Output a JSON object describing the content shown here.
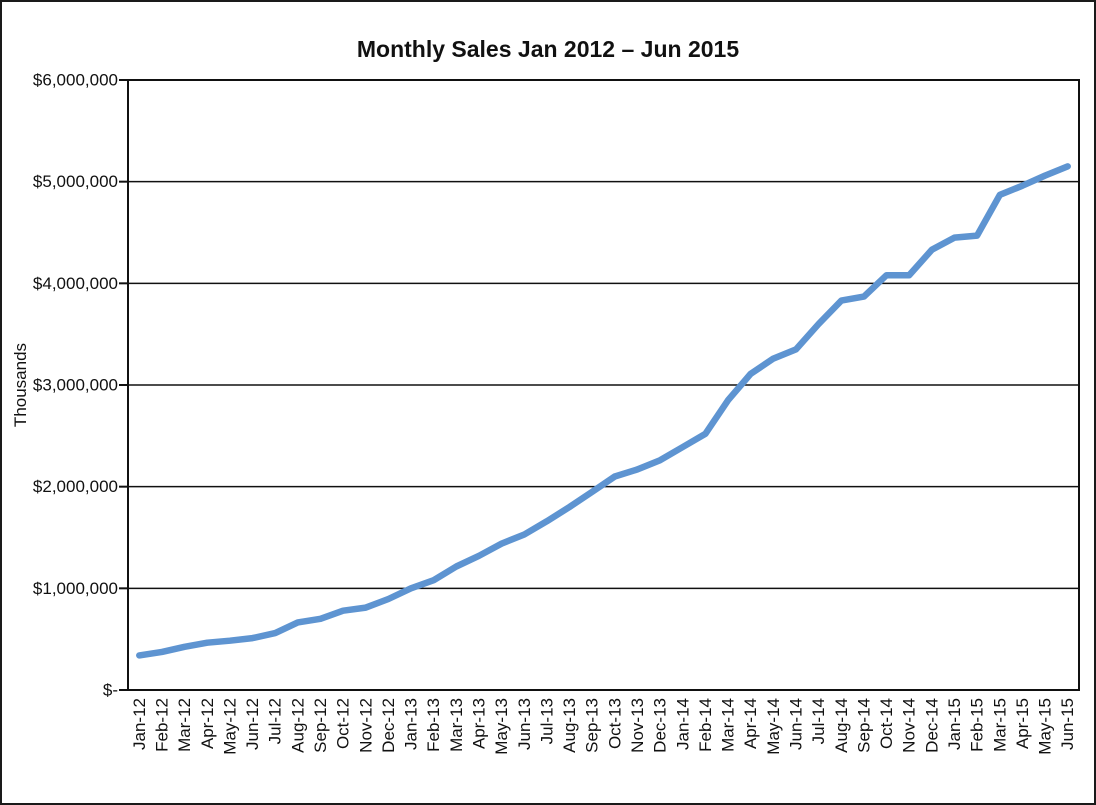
{
  "chart_data": {
    "type": "line",
    "title": "Monthly Sales Jan 2012 – Jun 2015",
    "xlabel": "",
    "ylabel": "Thousands",
    "categories": [
      "Jan-12",
      "Feb-12",
      "Mar-12",
      "Apr-12",
      "May-12",
      "Jun-12",
      "Jul-12",
      "Aug-12",
      "Sep-12",
      "Oct-12",
      "Nov-12",
      "Dec-12",
      "Jan-13",
      "Feb-13",
      "Mar-13",
      "Apr-13",
      "May-13",
      "Jun-13",
      "Jul-13",
      "Aug-13",
      "Sep-13",
      "Oct-13",
      "Nov-13",
      "Dec-13",
      "Jan-14",
      "Feb-14",
      "Mar-14",
      "Apr-14",
      "May-14",
      "Jun-14",
      "Jul-14",
      "Aug-14",
      "Sep-14",
      "Oct-14",
      "Nov-14",
      "Dec-14",
      "Jan-15",
      "Feb-15",
      "Mar-15",
      "Apr-15",
      "May-15",
      "Jun-15"
    ],
    "series": [
      {
        "name": "Monthly Sales",
        "values": [
          340000,
          375000,
          425000,
          465000,
          485000,
          510000,
          560000,
          665000,
          700000,
          780000,
          810000,
          895000,
          1000000,
          1080000,
          1215000,
          1320000,
          1440000,
          1530000,
          1660000,
          1800000,
          1950000,
          2100000,
          2170000,
          2260000,
          2390000,
          2520000,
          2850000,
          3110000,
          3260000,
          3350000,
          3600000,
          3830000,
          3870000,
          4080000,
          4080000,
          4330000,
          4450000,
          4470000,
          4870000,
          4960000,
          5060000,
          5150000
        ]
      }
    ],
    "ylim": [
      0,
      6000000
    ],
    "ytick_interval": 1000000,
    "ytick_labels": [
      "$-",
      "$1,000,000",
      "$2,000,000",
      "$3,000,000",
      "$4,000,000",
      "$5,000,000",
      "$6,000,000"
    ],
    "grid": "horizontal",
    "legend": "none",
    "line_color": "#5e94d1",
    "axis_color": "#111111"
  }
}
